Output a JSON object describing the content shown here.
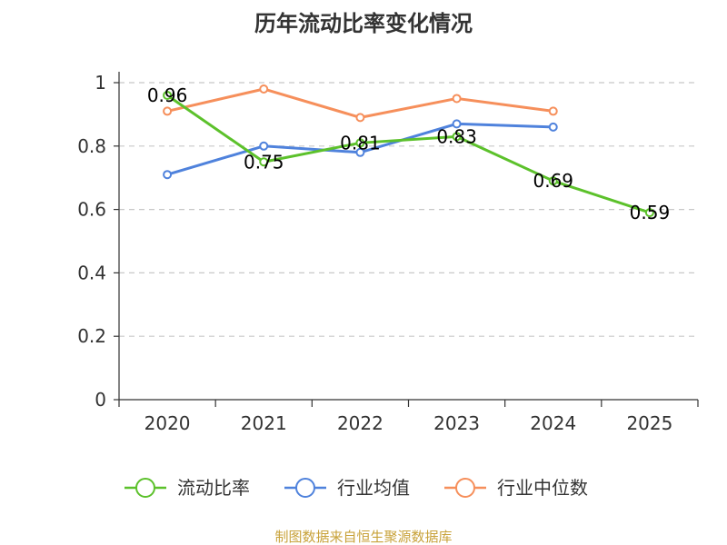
{
  "chart_data": {
    "type": "line",
    "title": "历年流动比率变化情况",
    "categories": [
      "2020",
      "2021",
      "2022",
      "2023",
      "2024",
      "2025"
    ],
    "ylim": [
      0,
      1
    ],
    "yticks": [
      "0",
      "0.2",
      "0.4",
      "0.6",
      "0.8",
      "1"
    ],
    "ytick_values": [
      0,
      0.2,
      0.4,
      0.6,
      0.8,
      1
    ],
    "grid": true,
    "legend_position": "bottom",
    "series": [
      {
        "name": "流动比率",
        "color": "#5cc12b",
        "values": [
          0.96,
          0.75,
          0.81,
          0.83,
          0.69,
          0.59
        ],
        "labels": [
          "0.96",
          "0.75",
          "0.81",
          "0.83",
          "0.69",
          "0.59"
        ],
        "show_labels": true
      },
      {
        "name": "行业均值",
        "color": "#4f82dc",
        "values": [
          0.71,
          0.8,
          0.78,
          0.87,
          0.86,
          null
        ],
        "show_labels": false
      },
      {
        "name": "行业中位数",
        "color": "#f68f5b",
        "values": [
          0.91,
          0.98,
          0.89,
          0.95,
          0.91,
          null
        ],
        "show_labels": false
      }
    ],
    "source": "制图数据来自恒生聚源数据库"
  }
}
